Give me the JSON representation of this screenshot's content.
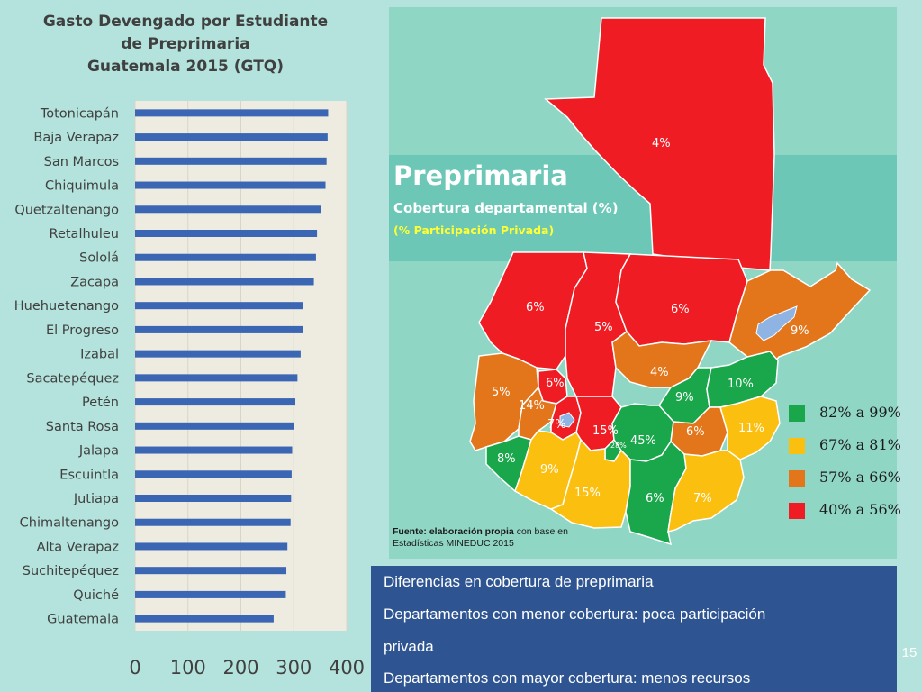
{
  "chart_data": {
    "type": "bar",
    "orientation": "horizontal",
    "title": [
      "Gasto Devengado por Estudiante",
      "de Preprimaria",
      "Guatemala 2015 (GTQ)"
    ],
    "categories": [
      "Totonicapán",
      "Baja Verapaz",
      "San Marcos",
      "Chiquimula",
      "Quetzaltenango",
      "Retalhuleu",
      "Sololá",
      "Zacapa",
      "Huehuetenango",
      "El Progreso",
      "Izabal",
      "Sacatepéquez",
      "Petén",
      "Santa Rosa",
      "Jalapa",
      "Escuintla",
      "Jutiapa",
      "Chimaltenango",
      "Alta Verapaz",
      "Suchitepéquez",
      "Quiché",
      "Guatemala"
    ],
    "values": [
      365,
      364,
      362,
      360,
      352,
      344,
      342,
      338,
      318,
      317,
      313,
      307,
      303,
      301,
      297,
      296,
      295,
      294,
      288,
      286,
      285,
      262
    ],
    "xlim": [
      0,
      400
    ],
    "xticks": [
      0,
      100,
      200,
      300,
      400
    ],
    "grid": true,
    "bar_color": "#3a66b4"
  },
  "map": {
    "title": "Preprimaria",
    "subtitle": "Cobertura departamental (%)",
    "subtitle2": "(% Participación Privada)",
    "labels": [
      {
        "id": "peten",
        "text": "4%"
      },
      {
        "id": "huehuetenango",
        "text": "6%"
      },
      {
        "id": "quiche",
        "text": "5%"
      },
      {
        "id": "alta-verapaz",
        "text": "6%"
      },
      {
        "id": "izabal",
        "text": "9%"
      },
      {
        "id": "san-marcos",
        "text": "5%"
      },
      {
        "id": "totonicapan",
        "text": "6%"
      },
      {
        "id": "quetzaltenango",
        "text": "14%"
      },
      {
        "id": "baja-verapaz",
        "text": "4%"
      },
      {
        "id": "el-progreso",
        "text": "9%"
      },
      {
        "id": "zacapa",
        "text": "10%"
      },
      {
        "id": "solola",
        "text": "7%"
      },
      {
        "id": "chimaltenango",
        "text": "15%"
      },
      {
        "id": "sacatepequez",
        "text": "28%"
      },
      {
        "id": "guatemala",
        "text": "45%"
      },
      {
        "id": "jalapa",
        "text": "6%"
      },
      {
        "id": "chiquimula",
        "text": "11%"
      },
      {
        "id": "retalhuleu",
        "text": "8%"
      },
      {
        "id": "suchitepequez",
        "text": "9%"
      },
      {
        "id": "escuintla",
        "text": "15%"
      },
      {
        "id": "santa-rosa",
        "text": "6%"
      },
      {
        "id": "jutiapa",
        "text": "7%"
      }
    ],
    "legend": [
      {
        "label": "82% a 99%",
        "color": "#1aa64b"
      },
      {
        "label": "67% a 81%",
        "color": "#fbbf0f"
      },
      {
        "label": "57% a 66%",
        "color": "#e3761b"
      },
      {
        "label": "40% a 56%",
        "color": "#ef1c24"
      }
    ],
    "source_bold": "Fuente: elaboración propia",
    "source_rest": " con base en",
    "source_line2": "Estadísticas MINEDUC 2015"
  },
  "bullets": [
    "Diferencias en cobertura de preprimaria",
    "Departamentos con menor cobertura: poca participación",
    "privada",
    "Departamentos con mayor cobertura: menos recursos"
  ],
  "slide_number": "15"
}
